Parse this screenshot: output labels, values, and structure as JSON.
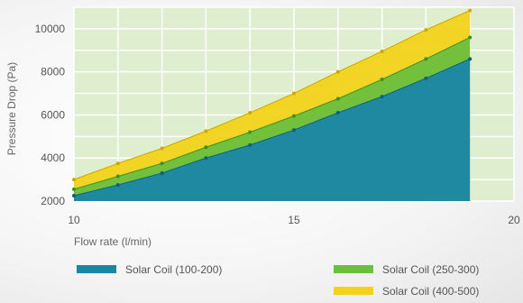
{
  "chart_data": {
    "type": "area",
    "xlabel": "Flow rate (l/min)",
    "ylabel": "Pressure Drop (Pa)",
    "xlim": [
      10,
      20
    ],
    "ylim": [
      2000,
      11000
    ],
    "x_ticks": [
      "10",
      "15",
      "20"
    ],
    "y_ticks": [
      "2000",
      "4000",
      "6000",
      "8000",
      "10000"
    ],
    "grid": true,
    "legend_position": "bottom",
    "x": [
      10,
      11,
      12,
      13,
      14,
      15,
      16,
      17,
      18,
      19
    ],
    "series": [
      {
        "name": "Solar Coil (100-200)",
        "color": "#1a86a6",
        "values": [
          2250,
          2750,
          3300,
          4000,
          4600,
          5300,
          6100,
          6850,
          7700,
          8600
        ]
      },
      {
        "name": "Solar Coil (250-300)",
        "color": "#6abf3c",
        "values": [
          2550,
          3150,
          3750,
          4500,
          5200,
          5950,
          6750,
          7650,
          8600,
          9600
        ]
      },
      {
        "name": "Solar Coil (400-500)",
        "color": "#f2d21b",
        "values": [
          3000,
          3750,
          4450,
          5250,
          6100,
          7000,
          8000,
          8950,
          9950,
          10850
        ]
      }
    ]
  }
}
